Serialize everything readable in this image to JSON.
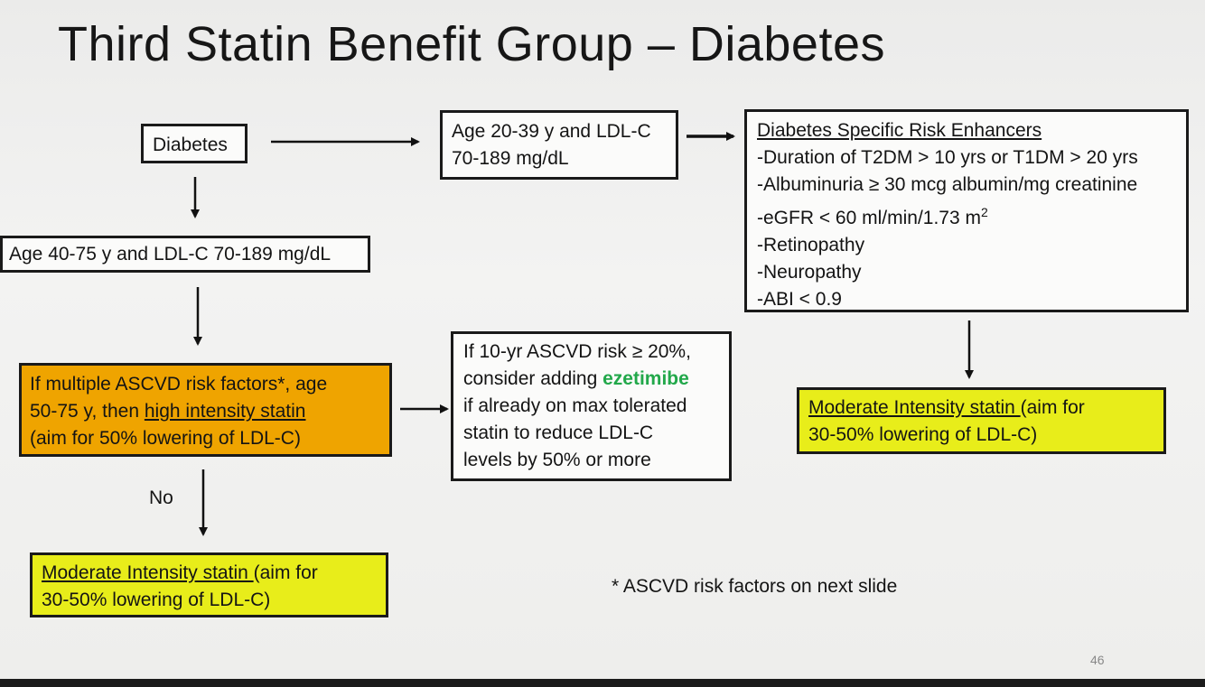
{
  "slide": {
    "title": "Third Statin Benefit Group – Diabetes",
    "page_number": "46",
    "footnote": "* ASCVD risk factors on next slide",
    "no_label": "No"
  },
  "boxes": {
    "diabetes": "Diabetes",
    "age_20_39": [
      "Age 20-39 y and LDL-C",
      "70-189 mg/dL"
    ],
    "age_40_75": "Age 40-75 y and LDL-C 70-189 mg/dL",
    "risk_enhancers": {
      "heading": "Diabetes Specific Risk Enhancers",
      "items": [
        "-Duration of T2DM > 10 yrs or T1DM > 20 yrs",
        "-Albuminuria ≥ 30 mcg albumin/mg creatinine",
        "-eGFR < 60 ml/min/1.73 m",
        "-Retinopathy",
        "-Neuropathy",
        "-ABI < 0.9"
      ],
      "egfr_superscript": "2"
    },
    "high_intensity": {
      "line1": "If multiple ASCVD risk factors*, age",
      "line2_prefix": "50-75 y, then ",
      "line2_link": "high intensity statin",
      "line3": "(aim for 50% lowering of LDL-C)"
    },
    "ezetimibe": {
      "line1": "If 10-yr ASCVD risk ≥ 20%,",
      "line2_prefix": "consider adding ",
      "line2_drug": "ezetimibe",
      "line3": "if already on max tolerated",
      "line4": "statin to reduce LDL-C",
      "line5": "levels by 50% or more"
    },
    "moderate_right": {
      "link": "Moderate Intensity statin ",
      "rest1": "(aim for",
      "line2": "30-50% lowering of LDL-C)"
    },
    "moderate_left": {
      "link": "Moderate Intensity statin ",
      "rest1": "(aim for",
      "line2": "30-50% lowering of LDL-C)"
    }
  },
  "colors": {
    "orange": "#efa400",
    "yellow": "#e8ed1a",
    "ezetimibe_green": "#22a84a"
  }
}
